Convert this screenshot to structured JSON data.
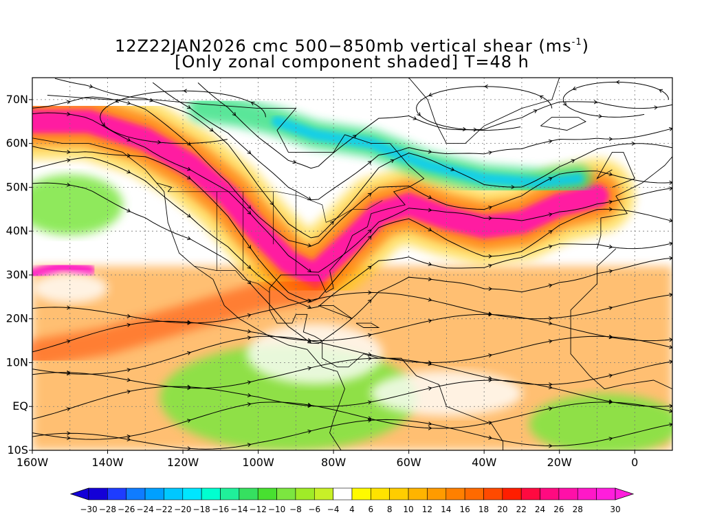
{
  "title": {
    "line1_prefix": "12Z22JAN2026 cmc 500−850mb vertical shear (ms",
    "line1_exponent": "-1",
    "line1_suffix": ")",
    "line2": "[Only zonal component shaded] T=48 h"
  },
  "map": {
    "lat_range": [
      -10,
      75
    ],
    "lon_range": [
      -160,
      10
    ],
    "lat_labels": [
      {
        "lat": 70,
        "text": "70N"
      },
      {
        "lat": 60,
        "text": "60N"
      },
      {
        "lat": 50,
        "text": "50N"
      },
      {
        "lat": 40,
        "text": "40N"
      },
      {
        "lat": 30,
        "text": "30N"
      },
      {
        "lat": 20,
        "text": "20N"
      },
      {
        "lat": 10,
        "text": "10N"
      },
      {
        "lat": 0,
        "text": "EQ"
      },
      {
        "lat": -10,
        "text": "10S"
      }
    ],
    "lon_labels": [
      {
        "lon": -160,
        "text": "160W"
      },
      {
        "lon": -140,
        "text": "140W"
      },
      {
        "lon": -120,
        "text": "120W"
      },
      {
        "lon": -100,
        "text": "100W"
      },
      {
        "lon": -80,
        "text": "80W"
      },
      {
        "lon": -60,
        "text": "60W"
      },
      {
        "lon": -40,
        "text": "40W"
      },
      {
        "lon": -20,
        "text": "20W"
      },
      {
        "lon": 0,
        "text": "0"
      }
    ],
    "jet_axis_lonlat": [
      [
        -160,
        65
      ],
      [
        -145,
        65
      ],
      [
        -130,
        61
      ],
      [
        -118,
        55
      ],
      [
        -108,
        48
      ],
      [
        -100,
        40
      ],
      [
        -92,
        33
      ],
      [
        -85,
        30
      ],
      [
        -75,
        38
      ],
      [
        -68,
        44
      ],
      [
        -60,
        46
      ],
      [
        -50,
        43
      ],
      [
        -40,
        41
      ],
      [
        -30,
        42
      ],
      [
        -20,
        46
      ],
      [
        -10,
        48
      ]
    ],
    "subtropical_jet_lonlat": [
      [
        -160,
        12
      ],
      [
        -140,
        15
      ],
      [
        -120,
        20
      ],
      [
        -100,
        25
      ],
      [
        -85,
        27
      ]
    ],
    "pink_band_lonlat": [
      [
        -160,
        30
      ],
      [
        -152,
        32
      ],
      [
        -145,
        31
      ]
    ],
    "green_band_lonlat": [
      [
        -115,
        68
      ],
      [
        -105,
        67
      ],
      [
        -95,
        65
      ],
      [
        -85,
        62
      ],
      [
        -70,
        60
      ],
      [
        -55,
        55
      ],
      [
        -40,
        52
      ],
      [
        -25,
        51
      ],
      [
        -15,
        52
      ]
    ]
  },
  "colorbar": {
    "colors": [
      "#1400d7",
      "#1e3cff",
      "#0f7cff",
      "#00a0ff",
      "#00c8ff",
      "#00e6ff",
      "#00ffd0",
      "#20f09a",
      "#36e060",
      "#48e030",
      "#7ce640",
      "#a0eb28",
      "#c8f028",
      "#ffffff",
      "#fffa00",
      "#ffe300",
      "#ffcd00",
      "#ffb400",
      "#ff9b00",
      "#ff8000",
      "#ff6a00",
      "#ff4a00",
      "#ff1e00",
      "#ff0a40",
      "#ff0a80",
      "#ff10a8",
      "#ff18c8",
      "#ff1edc"
    ],
    "labels": [
      "-30",
      "-28",
      "-26",
      "-24",
      "-22",
      "-20",
      "-18",
      "-16",
      "-14",
      "-12",
      "-10",
      "-8",
      "-6",
      "-4",
      "4",
      "6",
      "8",
      "10",
      "12",
      "14",
      "16",
      "18",
      "20",
      "22",
      "24",
      "26",
      "28",
      "30"
    ]
  }
}
